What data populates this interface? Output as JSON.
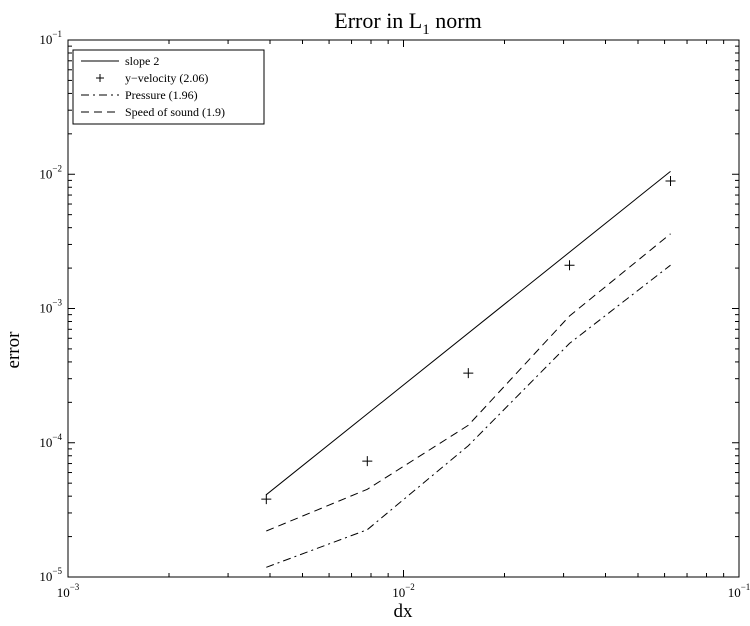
{
  "chart_data": {
    "type": "line",
    "title": "Error in L",
    "title_subscript": "1",
    "title_suffix": " norm",
    "xlabel": "dx",
    "ylabel": "error",
    "xscale": "log",
    "yscale": "log",
    "xlim": [
      0.001,
      0.1
    ],
    "ylim": [
      1e-05,
      0.1
    ],
    "x_ticks": [
      {
        "value": 0.001,
        "base": "10",
        "exp": "−3"
      },
      {
        "value": 0.01,
        "base": "10",
        "exp": "−2"
      },
      {
        "value": 0.1,
        "base": "10",
        "exp": "−1"
      }
    ],
    "y_ticks": [
      {
        "value": 1e-05,
        "base": "10",
        "exp": "−5"
      },
      {
        "value": 0.0001,
        "base": "10",
        "exp": "−4"
      },
      {
        "value": 0.001,
        "base": "10",
        "exp": "−3"
      },
      {
        "value": 0.01,
        "base": "10",
        "exp": "−2"
      },
      {
        "value": 0.1,
        "base": "10",
        "exp": "−1"
      }
    ],
    "grid": false,
    "legend_position": "top-left",
    "series": [
      {
        "name": "slope 2",
        "style": "solid",
        "marker": "none",
        "x": [
          0.0039,
          0.0625
        ],
        "y": [
          4.1e-05,
          0.0105
        ]
      },
      {
        "name": "y−velocity (2.06)",
        "style": "none",
        "marker": "+",
        "x": [
          0.0039,
          0.0078,
          0.0156,
          0.03125,
          0.0625
        ],
        "y": [
          3.8e-05,
          7.3e-05,
          0.00033,
          0.0021,
          0.0089
        ]
      },
      {
        "name": "Pressure (1.96)",
        "style": "dashdot",
        "marker": "none",
        "x": [
          0.0039,
          0.0078,
          0.0156,
          0.03125,
          0.0625
        ],
        "y": [
          1.18e-05,
          2.25e-05,
          9.5e-05,
          0.00055,
          0.0021
        ]
      },
      {
        "name": "Speed of sound (1.9)",
        "style": "dashed",
        "marker": "none",
        "x": [
          0.0039,
          0.0078,
          0.0156,
          0.03125,
          0.0625
        ],
        "y": [
          2.2e-05,
          4.5e-05,
          0.000135,
          0.00088,
          0.0036
        ]
      }
    ]
  }
}
